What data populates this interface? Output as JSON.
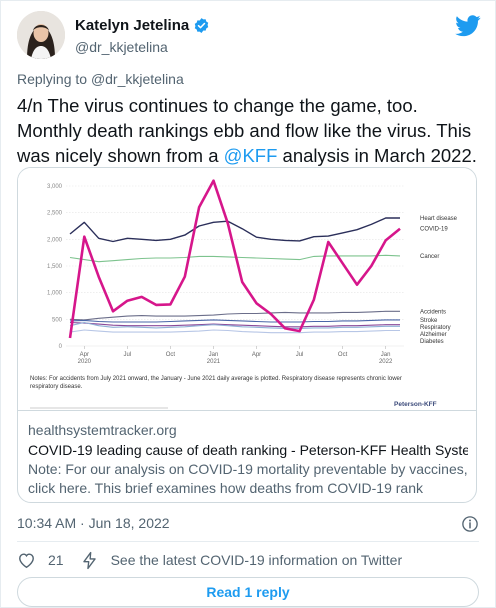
{
  "author": {
    "name": "Katelyn Jetelina",
    "handle": "@dr_kkjetelina"
  },
  "replying": {
    "prefix": "Replying to",
    "mention": "@dr_kkjetelina"
  },
  "tweet": {
    "text_before": "4/n The virus continues to change the game, too. Monthly death rankings ebb and flow like the virus. This was nicely shown from a ",
    "mention": "@KFF",
    "text_after": " analysis in March 2022."
  },
  "card": {
    "domain": "healthsystemtracker.org",
    "title": "COVID-19 leading cause of death ranking - Peterson-KFF Health System T...",
    "description": "Note: For our analysis on COVID-19 mortality preventable by vaccines, click here. This brief examines how deaths from COVID-19 rank among other ...",
    "notes": "Notes: For accidents from July 2021 onward, the January - June 2021 daily average is plotted.  Respiratory disease represents chronic lower respiratory disease.",
    "source_logo": "Peterson-KFF"
  },
  "meta": {
    "timestamp": "10:34 AM · Jun 18, 2022"
  },
  "actions": {
    "likes": "21",
    "covid_info": "See the latest COVID-19 information on Twitter"
  },
  "read_reply": "Read 1 reply",
  "colors": {
    "link": "#1d9bf0",
    "covid": "#d6168b",
    "heart": "#2b2f5a",
    "cancer": "#7dc38e"
  },
  "chart_data": {
    "type": "line",
    "title": "",
    "xlabel": "",
    "ylabel": "",
    "x": [
      "2020-03",
      "2020-04",
      "2020-05",
      "2020-06",
      "2020-07",
      "2020-08",
      "2020-09",
      "2020-10",
      "2020-11",
      "2020-12",
      "2021-01",
      "2021-02",
      "2021-03",
      "2021-04",
      "2021-05",
      "2021-06",
      "2021-07",
      "2021-08",
      "2021-09",
      "2021-10",
      "2021-11",
      "2021-12",
      "2022-01",
      "2022-02"
    ],
    "x_tick_labels": [
      {
        "label": "Apr",
        "year": "2020",
        "index": 1
      },
      {
        "label": "Jul",
        "year": "",
        "index": 4
      },
      {
        "label": "Oct",
        "year": "",
        "index": 7
      },
      {
        "label": "Jan",
        "year": "2021",
        "index": 10
      },
      {
        "label": "Apr",
        "year": "",
        "index": 13
      },
      {
        "label": "Jul",
        "year": "",
        "index": 16
      },
      {
        "label": "Oct",
        "year": "",
        "index": 19
      },
      {
        "label": "Jan",
        "year": "2022",
        "index": 22
      }
    ],
    "ylim": [
      0,
      3000
    ],
    "yticks": [
      "3,000",
      "2,500",
      "2,000",
      "1,500",
      "1,000",
      "500",
      "0"
    ],
    "ytick_values": [
      3000,
      2500,
      2000,
      1500,
      1000,
      500,
      0
    ],
    "series": [
      {
        "name": "Heart disease",
        "color": "#2b2f5a",
        "values": [
          2100,
          2320,
          2020,
          1960,
          2020,
          2000,
          1980,
          2000,
          2080,
          2250,
          2320,
          2340,
          2200,
          2040,
          2000,
          1980,
          1970,
          2050,
          2060,
          2120,
          2180,
          2280,
          2400,
          2400
        ]
      },
      {
        "name": "COVID-19",
        "color": "#d6168b",
        "values": [
          150,
          2050,
          1300,
          650,
          850,
          920,
          770,
          780,
          1300,
          2600,
          3100,
          2300,
          1200,
          800,
          600,
          330,
          280,
          870,
          1950,
          1550,
          1150,
          1500,
          1980,
          2200
        ]
      },
      {
        "name": "Cancer",
        "color": "#7dc38e",
        "values": [
          1660,
          1620,
          1580,
          1600,
          1620,
          1640,
          1650,
          1650,
          1660,
          1680,
          1680,
          1670,
          1660,
          1650,
          1640,
          1630,
          1620,
          1680,
          1690,
          1690,
          1690,
          1690,
          1700,
          1690
        ]
      },
      {
        "name": "Accidents",
        "color": "#6b6e8a",
        "values": [
          500,
          490,
          520,
          540,
          560,
          570,
          560,
          560,
          560,
          570,
          580,
          600,
          610,
          610,
          620,
          630,
          620,
          620,
          620,
          630,
          630,
          640,
          650,
          650
        ]
      },
      {
        "name": "Stroke",
        "color": "#4a66a8",
        "values": [
          470,
          480,
          460,
          450,
          450,
          450,
          450,
          460,
          470,
          480,
          490,
          480,
          470,
          460,
          450,
          450,
          450,
          460,
          460,
          470,
          470,
          480,
          490,
          490
        ]
      },
      {
        "name": "Respiratory",
        "color": "#8a4a9a",
        "values": [
          440,
          430,
          410,
          390,
          380,
          380,
          380,
          380,
          390,
          400,
          410,
          400,
          390,
          380,
          370,
          360,
          360,
          370,
          370,
          380,
          380,
          390,
          400,
          400
        ]
      },
      {
        "name": "Alzheimer",
        "color": "#8fb0d6",
        "values": [
          380,
          440,
          380,
          350,
          360,
          350,
          340,
          350,
          360,
          380,
          400,
          380,
          360,
          350,
          340,
          330,
          330,
          340,
          340,
          350,
          350,
          360,
          370,
          370
        ]
      },
      {
        "name": "Diabetes",
        "color": "#b7c6e6",
        "values": [
          260,
          300,
          280,
          260,
          260,
          260,
          260,
          260,
          270,
          280,
          300,
          290,
          270,
          260,
          250,
          250,
          250,
          260,
          260,
          270,
          270,
          280,
          290,
          290
        ]
      }
    ],
    "grid": true,
    "legend": "right, inline labels at line ends"
  }
}
